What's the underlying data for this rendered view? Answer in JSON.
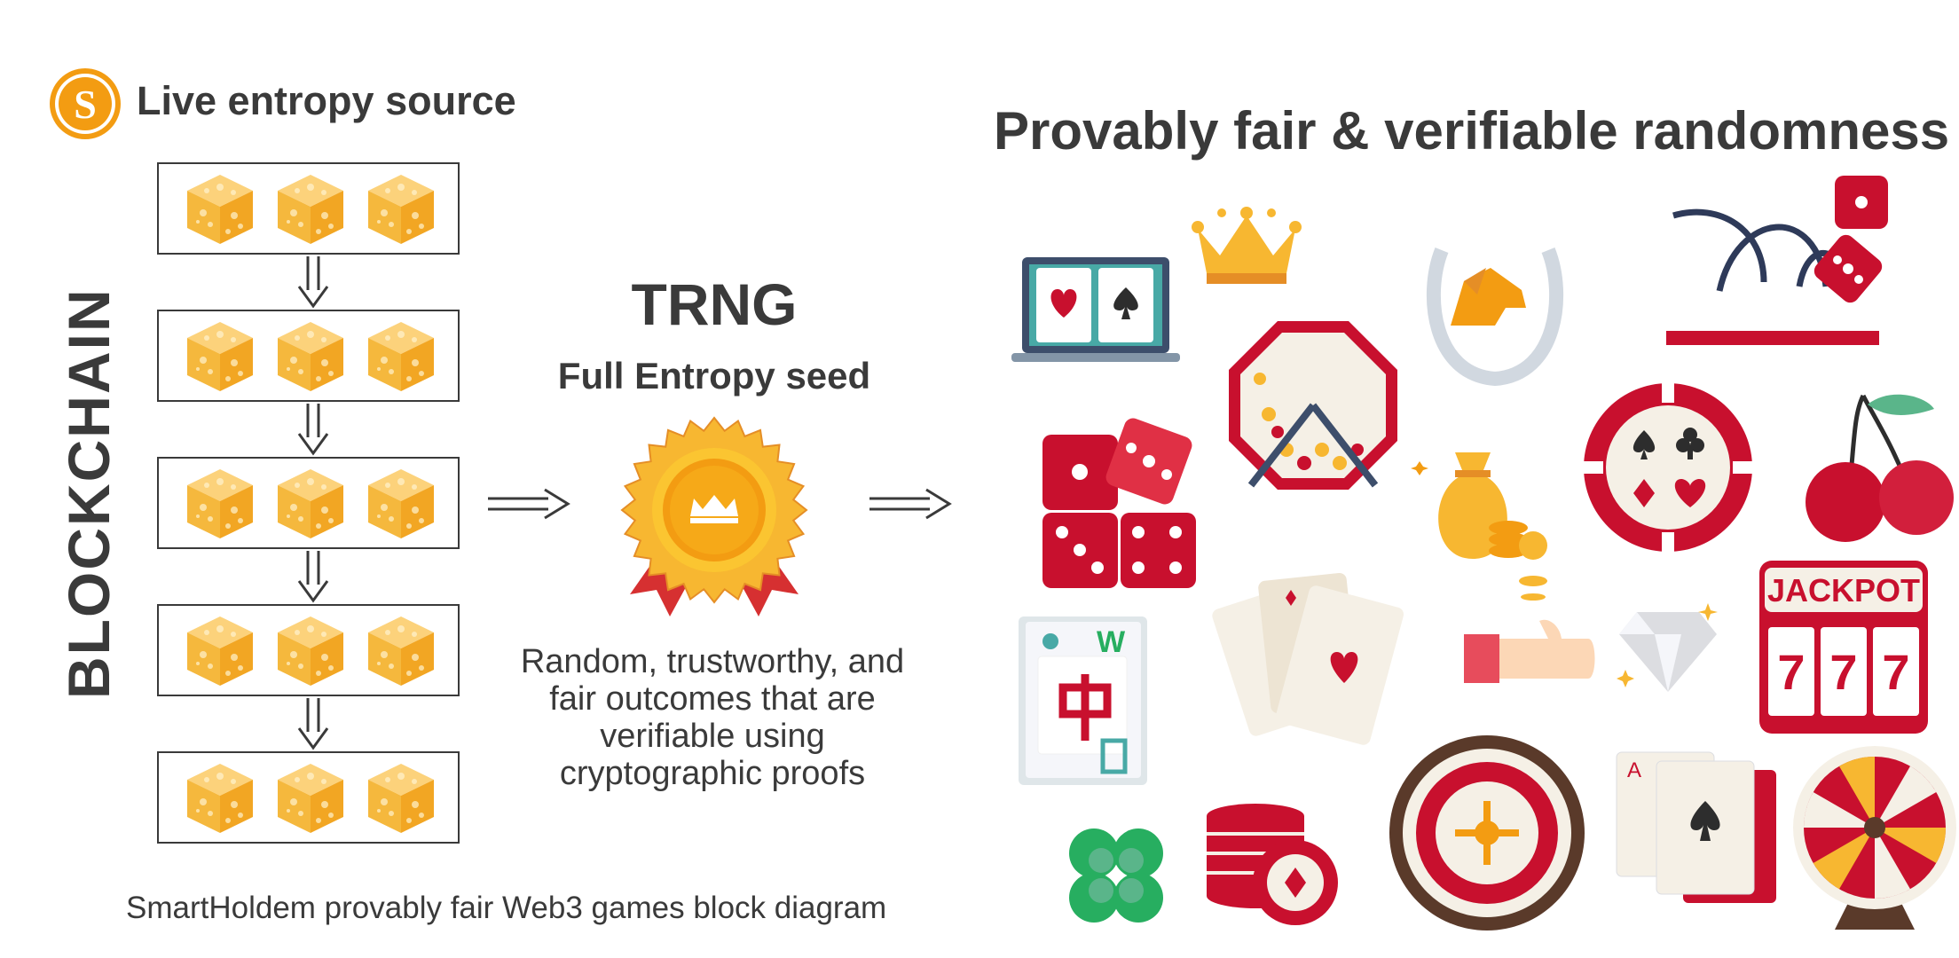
{
  "left": {
    "logo_letter": "S",
    "title": "Live entropy source",
    "vertical_label": "BLOCKCHAIN",
    "block_count": 5,
    "cubes_per_block": 3
  },
  "center": {
    "title": "TRNG",
    "subtitle": "Full Entropy seed",
    "description": "Random, trustworthy, and fair outcomes that are verifiable using cryptographic proofs"
  },
  "right": {
    "title": "Provably fair & verifiable randomness",
    "jackpot_text": "JACKPOT",
    "slot_digits": [
      "7",
      "7",
      "7"
    ],
    "mahjong_text": "W",
    "card_rank_a": "A"
  },
  "caption": "SmartHoldem provably fair Web3 games block diagram",
  "colors": {
    "text": "#3a3a3a",
    "orange": "#f39c12",
    "gold": "#f7b731",
    "red": "#c8102e",
    "cube": "#f5b83d"
  }
}
